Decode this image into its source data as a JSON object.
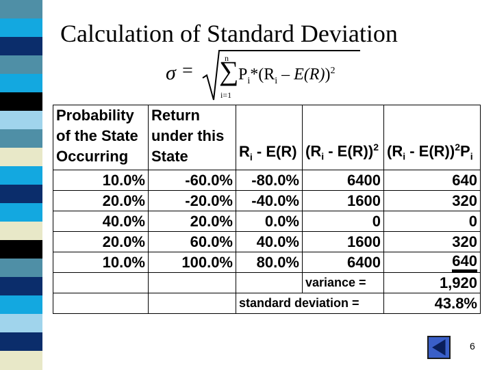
{
  "title": "Calculation of Standard Deviation",
  "formula": {
    "lhs": "σ",
    "eq": "=",
    "upper": "n",
    "sigma": "∑",
    "lower": "i=1",
    "p": "P",
    "p_sub": "i",
    "mid": "*(R",
    "r_sub": "i",
    "minus": " – ",
    "er": "E(R)",
    "close": ")",
    "exp": "2"
  },
  "table": {
    "headers": {
      "prob": [
        "Probability",
        "of the State",
        "Occurring"
      ],
      "ret": [
        "Return",
        "under this",
        "State"
      ],
      "dev_r": "R",
      "dev_sub": "i",
      "dev_rest": " - E(R)",
      "sq_a": "(R",
      "sq_sub": "i",
      "sq_b": " - E(R))",
      "sq_exp": "2",
      "w_a": "(R",
      "w_sub": "i",
      "w_b": " - E(R))",
      "w_exp": "2",
      "w_p": "P",
      "w_psub": "i"
    },
    "rows": [
      {
        "prob": "10.0%",
        "ret": "-60.0%",
        "dev": "-80.0%",
        "sq": "6400",
        "w": "640"
      },
      {
        "prob": "20.0%",
        "ret": "-20.0%",
        "dev": "-40.0%",
        "sq": "1600",
        "w": "320"
      },
      {
        "prob": "40.0%",
        "ret": "20.0%",
        "dev": "0.0%",
        "sq": "0",
        "w": "0"
      },
      {
        "prob": "20.0%",
        "ret": "60.0%",
        "dev": "40.0%",
        "sq": "1600",
        "w": "320"
      },
      {
        "prob": "10.0%",
        "ret": "100.0%",
        "dev": "80.0%",
        "sq": "6400",
        "w": "640"
      }
    ],
    "variance_label": "variance =",
    "variance_value": "1,920",
    "sd_label": "standard deviation =",
    "sd_value": "43.8%"
  },
  "page_number": "6",
  "colors": {
    "stripe_navy": "#0b2d6b",
    "stripe_sky": "#13a8e0",
    "stripe_black": "#000000",
    "stripe_teal": "#4f8fa6",
    "stripe_cream": "#e8e8c8",
    "stripe_light": "#a0d4ec",
    "nav_button": "#3a5fc8"
  },
  "icons": {
    "nav": "previous-slide-triangle-icon"
  }
}
